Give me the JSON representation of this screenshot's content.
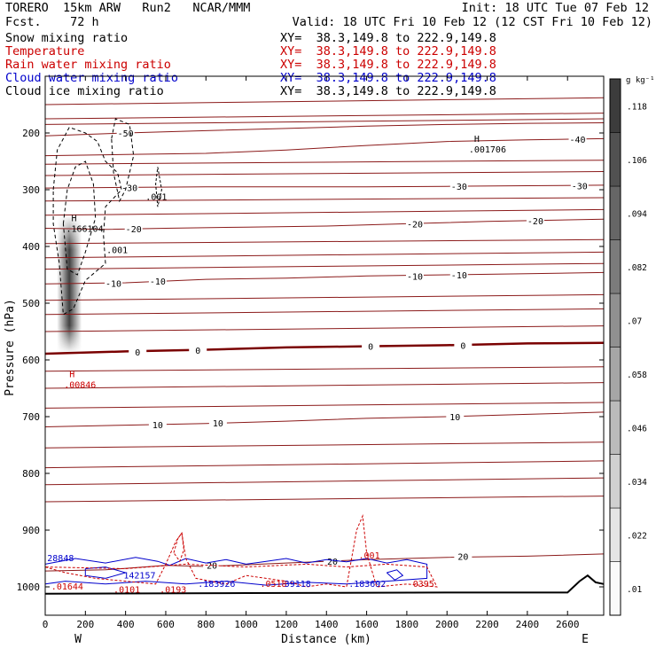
{
  "header": {
    "model": "TORERO  15km ARW   Run2   NCAR/MMM",
    "forecast": "Fcst.    72 h",
    "init": "Init: 18 UTC Tue 07 Feb 12",
    "valid": "Valid: 18 UTC Fri 10 Feb 12 (12 CST Fri 10 Feb 12)"
  },
  "fields": [
    {
      "name": "Snow mixing ratio",
      "xy": "XY=  38.3,149.8 to 222.9,149.8",
      "color": "#000000"
    },
    {
      "name": "Temperature",
      "xy": "XY=  38.3,149.8 to 222.9,149.8",
      "color": "#cc0000"
    },
    {
      "name": "Rain water mixing ratio",
      "xy": "XY=  38.3,149.8 to 222.9,149.8",
      "color": "#cc0000"
    },
    {
      "name": "Cloud water mixing ratio",
      "xy": "XY=  38.3,149.8 to 222.9,149.8",
      "color": "#0000cc"
    },
    {
      "name": "Cloud ice mixing ratio",
      "xy": "XY=  38.3,149.8 to 222.9,149.8",
      "color": "#000000"
    }
  ],
  "colorbar": {
    "unit": "g kg⁻¹",
    "labels": [
      ".01",
      ".022",
      ".034",
      ".046",
      ".058",
      ".07",
      ".082",
      ".094",
      ".106",
      ".118"
    ]
  },
  "chart_data": {
    "type": "cross-section contour",
    "xlabel": "Distance (km)",
    "ylabel": "Pressure (hPa)",
    "xlim": [
      0,
      2780
    ],
    "ylim": [
      1050,
      100
    ],
    "x_ticks": [
      0,
      200,
      400,
      600,
      800,
      1000,
      1200,
      1400,
      1600,
      1800,
      2000,
      2200,
      2400,
      2600
    ],
    "y_ticks": [
      200,
      300,
      400,
      500,
      600,
      700,
      800,
      900,
      1000
    ],
    "x_end_labels": {
      "left": "W",
      "right": "E"
    },
    "temperature_contours": [
      {
        "label": "-50",
        "points": [
          [
            0,
            205
          ],
          [
            400,
            200
          ],
          [
            800,
            196
          ],
          [
            1200,
            192
          ],
          [
            1600,
            188
          ],
          [
            2000,
            185
          ],
          [
            2400,
            183
          ],
          [
            2780,
            182
          ]
        ],
        "labels_at": [
          [
            400,
            200
          ]
        ]
      },
      {
        "label": "-40",
        "points": [
          [
            0,
            240
          ],
          [
            400,
            238
          ],
          [
            800,
            236
          ],
          [
            1200,
            230
          ],
          [
            1600,
            222
          ],
          [
            2000,
            215
          ],
          [
            2400,
            212
          ],
          [
            2780,
            210
          ]
        ],
        "labels_at": [
          [
            2650,
            211
          ]
        ]
      },
      {
        "label": "-30",
        "points": [
          [
            0,
            297
          ],
          [
            400,
            296
          ],
          [
            800,
            295
          ],
          [
            1200,
            295
          ],
          [
            1600,
            295
          ],
          [
            2000,
            294
          ],
          [
            2400,
            293
          ],
          [
            2780,
            292
          ]
        ],
        "labels_at": [
          [
            420,
            296
          ],
          [
            2060,
            294
          ],
          [
            2660,
            293
          ]
        ]
      },
      {
        "label": "-20",
        "points": [
          [
            0,
            368
          ],
          [
            300,
            370
          ],
          [
            600,
            368
          ],
          [
            1000,
            366
          ],
          [
            1400,
            364
          ],
          [
            1800,
            360
          ],
          [
            2200,
            356
          ],
          [
            2780,
            352
          ]
        ],
        "labels_at": [
          [
            440,
            369
          ],
          [
            1840,
            360
          ],
          [
            2440,
            355
          ]
        ]
      },
      {
        "label": "-10",
        "points": [
          [
            0,
            466
          ],
          [
            400,
            464
          ],
          [
            800,
            458
          ],
          [
            1200,
            456
          ],
          [
            1600,
            452
          ],
          [
            2000,
            450
          ],
          [
            2400,
            448
          ],
          [
            2780,
            446
          ]
        ],
        "labels_at": [
          [
            340,
            465
          ],
          [
            560,
            461
          ],
          [
            1840,
            452
          ],
          [
            2060,
            450
          ]
        ]
      },
      {
        "label": "0",
        "points": [
          [
            0,
            589
          ],
          [
            400,
            585
          ],
          [
            800,
            582
          ],
          [
            1200,
            578
          ],
          [
            1600,
            576
          ],
          [
            2000,
            574
          ],
          [
            2400,
            571
          ],
          [
            2780,
            570
          ]
        ],
        "labels_at": [
          [
            460,
            586
          ],
          [
            760,
            583
          ],
          [
            1620,
            576
          ],
          [
            2080,
            574
          ]
        ]
      },
      {
        "label": "10",
        "points": [
          [
            0,
            718
          ],
          [
            400,
            715
          ],
          [
            800,
            712
          ],
          [
            1200,
            708
          ],
          [
            1600,
            703
          ],
          [
            2000,
            700
          ],
          [
            2400,
            696
          ],
          [
            2780,
            692
          ]
        ],
        "labels_at": [
          [
            560,
            714
          ],
          [
            860,
            711
          ],
          [
            2040,
            700
          ]
        ]
      },
      {
        "label": "20",
        "points": [
          [
            0,
            972
          ],
          [
            300,
            970
          ],
          [
            600,
            962
          ],
          [
            800,
            964
          ],
          [
            1200,
            958
          ],
          [
            1600,
            952
          ],
          [
            2000,
            948
          ],
          [
            2400,
            946
          ],
          [
            2780,
            942
          ]
        ],
        "labels_at": [
          [
            830,
            962
          ],
          [
            1430,
            955
          ],
          [
            2080,
            946
          ]
        ]
      }
    ],
    "extra_isotherms_unlabeled": [
      [
        [
          0,
          150
        ],
        [
          2780,
          138
        ]
      ],
      [
        [
          0,
          175
        ],
        [
          2780,
          165
        ]
      ],
      [
        [
          0,
          185
        ],
        [
          2780,
          175
        ]
      ],
      [
        [
          0,
          255
        ],
        [
          2780,
          248
        ]
      ],
      [
        [
          0,
          275
        ],
        [
          2780,
          268
        ]
      ],
      [
        [
          0,
          320
        ],
        [
          2780,
          314
        ]
      ],
      [
        [
          0,
          345
        ],
        [
          2780,
          335
        ]
      ],
      [
        [
          0,
          395
        ],
        [
          2780,
          388
        ]
      ],
      [
        [
          0,
          420
        ],
        [
          2780,
          410
        ]
      ],
      [
        [
          0,
          440
        ],
        [
          2780,
          430
        ]
      ],
      [
        [
          0,
          495
        ],
        [
          2780,
          485
        ]
      ],
      [
        [
          0,
          520
        ],
        [
          2780,
          510
        ]
      ],
      [
        [
          0,
          550
        ],
        [
          2780,
          540
        ]
      ],
      [
        [
          0,
          620
        ],
        [
          2780,
          612
        ]
      ],
      [
        [
          0,
          650
        ],
        [
          2780,
          640
        ]
      ],
      [
        [
          0,
          685
        ],
        [
          2780,
          675
        ]
      ],
      [
        [
          0,
          755
        ],
        [
          2780,
          745
        ]
      ],
      [
        [
          0,
          790
        ],
        [
          2780,
          778
        ]
      ],
      [
        [
          0,
          820
        ],
        [
          2780,
          808
        ]
      ],
      [
        [
          0,
          850
        ],
        [
          2780,
          840
        ]
      ]
    ],
    "snow_max_shading": {
      "x_center": 120,
      "p_top": 345,
      "p_bottom": 588,
      "max_value": 0.118
    },
    "extrema": [
      {
        "type": "H",
        "label": ".166104",
        "x": 130,
        "p": 365,
        "field": "snow",
        "color": "#000000"
      },
      {
        "type": "H",
        "label": ".001706",
        "x": 2135,
        "p": 225,
        "field": "ice",
        "color": "#000000"
      },
      {
        "type": "H",
        "label": ".00846",
        "x": 120,
        "p": 640,
        "field": "rain",
        "color": "#cc0000"
      },
      {
        "type": "label",
        "label": ".001",
        "x": 305,
        "p": 412,
        "field": "snow",
        "color": "#000000"
      },
      {
        "type": "label",
        "label": ".001",
        "x": 500,
        "p": 318,
        "field": "ice",
        "color": "#000000"
      },
      {
        "type": "label",
        "label": ".001",
        "x": 1560,
        "p": 950,
        "field": "rain",
        "color": "#cc0000"
      },
      {
        "type": "label",
        "label": "28848",
        "x": 10,
        "p": 955,
        "field": "cloud",
        "color": "#0000cc"
      },
      {
        "type": "label",
        "label": ".01644",
        "x": 30,
        "p": 1005,
        "field": "rain",
        "color": "#cc0000"
      },
      {
        "type": "label",
        "label": "142157",
        "x": 390,
        "p": 985,
        "field": "cloud",
        "color": "#0000cc"
      },
      {
        "type": "label",
        "label": ".0101",
        "x": 340,
        "p": 1010,
        "field": "rain",
        "color": "#cc0000"
      },
      {
        "type": "label",
        "label": ".0193",
        "x": 570,
        "p": 1010,
        "field": "rain",
        "color": "#cc0000"
      },
      {
        "type": "label",
        "label": ".183926",
        "x": 760,
        "p": 1000,
        "field": "cloud",
        "color": "#0000cc"
      },
      {
        "type": "label",
        "label": ".0518",
        "x": 1070,
        "p": 1000,
        "field": "rain",
        "color": "#cc0000"
      },
      {
        "type": "label",
        "label": "39118",
        "x": 1190,
        "p": 1000,
        "field": "cloud",
        "color": "#0000cc"
      },
      {
        "type": "label",
        "label": ".183692",
        "x": 1510,
        "p": 1000,
        "field": "cloud",
        "color": "#0000cc"
      },
      {
        "type": "label",
        "label": "0395",
        "x": 1830,
        "p": 1000,
        "field": "rain",
        "color": "#cc0000"
      }
    ],
    "terrain": {
      "points": [
        [
          0,
          1012
        ],
        [
          1000,
          1011
        ],
        [
          2000,
          1010
        ],
        [
          2600,
          1010
        ],
        [
          2660,
          990
        ],
        [
          2700,
          980
        ],
        [
          2740,
          992
        ],
        [
          2780,
          995
        ]
      ]
    }
  }
}
